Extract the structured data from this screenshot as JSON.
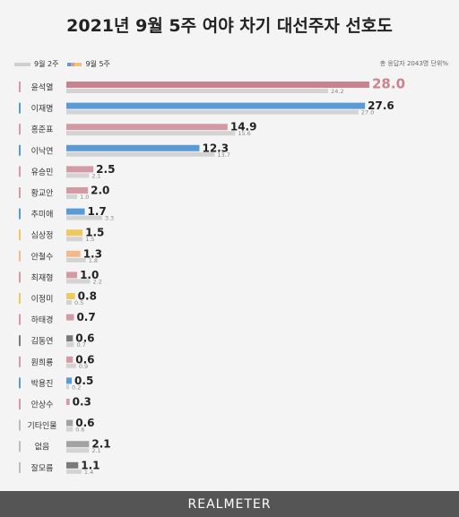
{
  "title": "2021년 9월 5주 여야 차기 대선주자 선호도",
  "legend": {
    "prev": "9월 2주",
    "curr": "9월 5주"
  },
  "note": "총 응답자 2043명   단위%",
  "footer": "REALMETER",
  "colors": {
    "prev": "#d3d3d3",
    "highlight": "#c9838f",
    "red": "#d49aa4",
    "blue": "#5b9bd5",
    "yellow": "#edc95e",
    "orange": "#f2b98a",
    "darkgray": "#7a7a7a",
    "midgray": "#a3a3a3",
    "none": "#bcbcbc"
  },
  "chart_data": {
    "type": "bar",
    "orientation": "horizontal",
    "categories": [
      "윤석열",
      "이재명",
      "홍준표",
      "이낙연",
      "유승민",
      "황교안",
      "추미애",
      "심상정",
      "안철수",
      "최재형",
      "이정미",
      "하태경",
      "김동연",
      "원희룡",
      "박용진",
      "안상수",
      "기타인물",
      "없음",
      "잘모름"
    ],
    "series": [
      {
        "name": "9월 5주",
        "values": [
          28.0,
          27.6,
          14.9,
          12.3,
          2.5,
          2.0,
          1.7,
          1.5,
          1.3,
          1.0,
          0.8,
          0.7,
          0.6,
          0.6,
          0.5,
          0.3,
          0.6,
          2.1,
          1.1
        ]
      },
      {
        "name": "9월 2주",
        "values": [
          24.2,
          27.0,
          15.6,
          13.7,
          2.1,
          1.0,
          3.3,
          1.5,
          1.8,
          2.2,
          0.5,
          null,
          0.7,
          0.9,
          0.2,
          null,
          0.6,
          2.1,
          1.4
        ]
      }
    ],
    "value_labels_curr": [
      "28.0",
      "27.6",
      "14.9",
      "12.3",
      "2.5",
      "2.0",
      "1.7",
      "1.5",
      "1.3",
      "1.0",
      "0.8",
      "0.7",
      "0.6",
      "0.6",
      "0.5",
      "0.3",
      "0.6",
      "2.1",
      "1.1"
    ],
    "value_labels_prev": [
      "24.2",
      "27.0",
      "15.6",
      "13.7",
      "2.1",
      "1.0",
      "3.3",
      "1.5",
      "1.8",
      "2.2",
      "0.5",
      "",
      "0.7",
      "0.9",
      "0.2",
      "",
      "0.6",
      "2.1",
      "1.4"
    ],
    "marker_colors": [
      "red",
      "blue",
      "red",
      "blue",
      "red",
      "red",
      "blue",
      "yellow",
      "orange",
      "red",
      "yellow",
      "red",
      "darkgray",
      "red",
      "blue",
      "red",
      "none",
      "none",
      "none"
    ],
    "bar_colors": [
      "highlight",
      "blue",
      "red",
      "blue",
      "red",
      "red",
      "blue",
      "yellow",
      "orange",
      "red",
      "yellow",
      "red",
      "darkgray",
      "red",
      "blue",
      "red",
      "midgray",
      "midgray",
      "darkgray"
    ],
    "xlim": [
      0,
      28
    ]
  }
}
